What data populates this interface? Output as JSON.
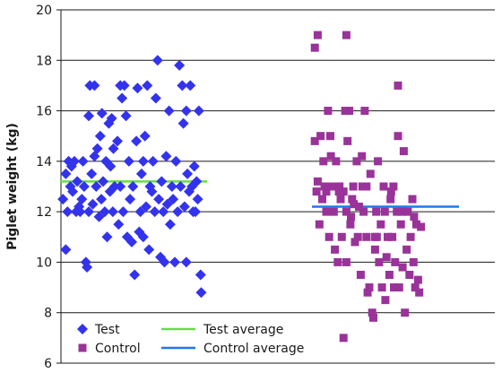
{
  "chart_data": {
    "type": "scatter",
    "ylabel": "Piglet weight (kg)",
    "xlabel": "",
    "ylim": [
      6,
      20
    ],
    "yticks": [
      6,
      8,
      10,
      12,
      14,
      16,
      18,
      20
    ],
    "grid": "horizontal",
    "legend_position": "bottom-left",
    "series": [
      {
        "name": "Test",
        "marker": "diamond",
        "color": "#3333ee",
        "group": "left",
        "points": [
          [
            0.05,
            12.5
          ],
          [
            0.1,
            13.5
          ],
          [
            0.1,
            10.5
          ],
          [
            0.13,
            12.0
          ],
          [
            0.15,
            14.0
          ],
          [
            0.2,
            13.8
          ],
          [
            0.22,
            12.8
          ],
          [
            0.25,
            14.0
          ],
          [
            0.3,
            13.2
          ],
          [
            0.33,
            12.2
          ],
          [
            0.35,
            12.0
          ],
          [
            0.38,
            12.5
          ],
          [
            0.4,
            14.0
          ],
          [
            0.42,
            13.0
          ],
          [
            0.45,
            10.0
          ],
          [
            0.47,
            9.8
          ],
          [
            0.5,
            12.0
          ],
          [
            0.5,
            15.8
          ],
          [
            0.52,
            17.0
          ],
          [
            0.55,
            13.5
          ],
          [
            0.57,
            12.3
          ],
          [
            0.6,
            14.2
          ],
          [
            0.63,
            13.0
          ],
          [
            0.65,
            14.5
          ],
          [
            0.68,
            11.8
          ],
          [
            0.7,
            15.0
          ],
          [
            0.72,
            12.5
          ],
          [
            0.73,
            15.9
          ],
          [
            0.75,
            13.2
          ],
          [
            0.78,
            12.0
          ],
          [
            0.8,
            14.0
          ],
          [
            0.82,
            11.0
          ],
          [
            0.85,
            15.5
          ],
          [
            0.87,
            12.8
          ],
          [
            0.88,
            13.8
          ],
          [
            0.9,
            15.7
          ],
          [
            0.92,
            12.0
          ],
          [
            0.93,
            14.5
          ],
          [
            0.95,
            13.0
          ],
          [
            1.0,
            14.8
          ],
          [
            1.02,
            11.5
          ],
          [
            1.05,
            13.0
          ],
          [
            1.08,
            16.5
          ],
          [
            1.1,
            12.0
          ],
          [
            1.12,
            17.0
          ],
          [
            1.15,
            15.8
          ],
          [
            1.17,
            11.0
          ],
          [
            1.2,
            14.0
          ],
          [
            1.22,
            12.5
          ],
          [
            1.25,
            10.8
          ],
          [
            1.27,
            13.0
          ],
          [
            1.3,
            9.5
          ],
          [
            1.33,
            14.8
          ],
          [
            1.35,
            16.9
          ],
          [
            1.38,
            11.2
          ],
          [
            1.4,
            12.0
          ],
          [
            1.42,
            13.5
          ],
          [
            1.45,
            14.0
          ],
          [
            1.48,
            15.0
          ],
          [
            1.5,
            12.2
          ],
          [
            1.52,
            17.0
          ],
          [
            1.55,
            10.5
          ],
          [
            1.57,
            13.0
          ],
          [
            1.6,
            12.8
          ],
          [
            1.62,
            14.0
          ],
          [
            1.65,
            12.0
          ],
          [
            1.67,
            16.5
          ],
          [
            1.7,
            18.0
          ],
          [
            1.72,
            12.5
          ],
          [
            1.75,
            10.2
          ],
          [
            1.77,
            13.2
          ],
          [
            1.8,
            12.0
          ],
          [
            1.82,
            10.0
          ],
          [
            1.85,
            14.2
          ],
          [
            1.87,
            12.3
          ],
          [
            1.9,
            16.0
          ],
          [
            1.92,
            11.5
          ],
          [
            1.95,
            13.0
          ],
          [
            1.97,
            12.5
          ],
          [
            2.0,
            10.0
          ],
          [
            2.02,
            14.0
          ],
          [
            2.05,
            12.0
          ],
          [
            2.08,
            17.8
          ],
          [
            2.1,
            13.0
          ],
          [
            2.13,
            17.0
          ],
          [
            2.15,
            15.5
          ],
          [
            2.17,
            12.2
          ],
          [
            2.2,
            16.0
          ],
          [
            2.22,
            13.5
          ],
          [
            2.25,
            12.8
          ],
          [
            2.27,
            17.0
          ],
          [
            2.3,
            13.0
          ],
          [
            2.32,
            12.0
          ],
          [
            2.34,
            13.8
          ],
          [
            2.36,
            12.0
          ],
          [
            2.38,
            13.2
          ],
          [
            2.4,
            12.5
          ],
          [
            2.42,
            16.0
          ],
          [
            2.45,
            9.5
          ],
          [
            2.46,
            8.8
          ],
          [
            0.18,
            13.0
          ],
          [
            0.28,
            12.0
          ],
          [
            0.6,
            17.0
          ],
          [
            1.05,
            17.0
          ],
          [
            2.2,
            10.0
          ],
          [
            1.45,
            11.0
          ]
        ]
      },
      {
        "name": "Control",
        "marker": "square",
        "color": "#993399",
        "group": "right",
        "points": [
          [
            0.05,
            18.5
          ],
          [
            0.1,
            19.0
          ],
          [
            0.6,
            19.0
          ],
          [
            1.5,
            17.0
          ],
          [
            0.05,
            14.8
          ],
          [
            0.1,
            13.2
          ],
          [
            0.15,
            15.0
          ],
          [
            0.18,
            12.5
          ],
          [
            0.2,
            14.0
          ],
          [
            0.22,
            13.0
          ],
          [
            0.25,
            12.8
          ],
          [
            0.28,
            16.0
          ],
          [
            0.3,
            11.0
          ],
          [
            0.32,
            15.0
          ],
          [
            0.35,
            13.0
          ],
          [
            0.38,
            12.0
          ],
          [
            0.4,
            10.5
          ],
          [
            0.42,
            14.0
          ],
          [
            0.45,
            10.0
          ],
          [
            0.48,
            13.0
          ],
          [
            0.5,
            12.5
          ],
          [
            0.52,
            11.0
          ],
          [
            0.55,
            12.8
          ],
          [
            0.58,
            16.0
          ],
          [
            0.6,
            12.0
          ],
          [
            0.62,
            14.8
          ],
          [
            0.65,
            16.0
          ],
          [
            0.67,
            11.5
          ],
          [
            0.7,
            12.5
          ],
          [
            0.72,
            13.0
          ],
          [
            0.75,
            10.8
          ],
          [
            0.78,
            14.0
          ],
          [
            0.8,
            11.0
          ],
          [
            0.82,
            12.2
          ],
          [
            0.85,
            9.5
          ],
          [
            0.87,
            14.2
          ],
          [
            0.9,
            12.0
          ],
          [
            0.92,
            16.0
          ],
          [
            0.95,
            11.0
          ],
          [
            0.97,
            8.8
          ],
          [
            1.0,
            9.0
          ],
          [
            1.02,
            13.5
          ],
          [
            1.05,
            8.0
          ],
          [
            1.07,
            7.8
          ],
          [
            1.1,
            11.0
          ],
          [
            1.12,
            12.0
          ],
          [
            1.15,
            14.0
          ],
          [
            1.17,
            10.0
          ],
          [
            1.2,
            11.5
          ],
          [
            1.22,
            9.0
          ],
          [
            1.25,
            13.0
          ],
          [
            1.27,
            12.0
          ],
          [
            1.3,
            10.2
          ],
          [
            1.32,
            11.0
          ],
          [
            1.35,
            9.5
          ],
          [
            1.37,
            12.5
          ],
          [
            1.4,
            11.0
          ],
          [
            1.42,
            13.0
          ],
          [
            1.45,
            10.0
          ],
          [
            1.48,
            12.0
          ],
          [
            1.5,
            15.0
          ],
          [
            1.52,
            9.0
          ],
          [
            1.55,
            11.5
          ],
          [
            1.57,
            12.0
          ],
          [
            1.6,
            14.4
          ],
          [
            1.62,
            8.0
          ],
          [
            1.65,
            10.5
          ],
          [
            1.67,
            12.0
          ],
          [
            1.7,
            9.5
          ],
          [
            1.72,
            11.0
          ],
          [
            1.75,
            12.5
          ],
          [
            1.77,
            10.0
          ],
          [
            1.8,
            9.0
          ],
          [
            1.82,
            11.5
          ],
          [
            1.85,
            9.3
          ],
          [
            1.87,
            8.8
          ],
          [
            1.9,
            11.4
          ],
          [
            0.55,
            7.0
          ],
          [
            0.08,
            12.8
          ],
          [
            0.13,
            11.5
          ],
          [
            0.25,
            12.0
          ],
          [
            0.33,
            14.2
          ],
          [
            0.47,
            12.8
          ],
          [
            0.68,
            11.8
          ],
          [
            0.73,
            12.3
          ],
          [
            0.88,
            13.0
          ],
          [
            1.13,
            11.0
          ],
          [
            1.28,
            8.5
          ],
          [
            1.38,
            12.8
          ],
          [
            1.58,
            9.8
          ],
          [
            1.78,
            11.8
          ],
          [
            0.4,
            13.0
          ],
          [
            0.6,
            10.0
          ],
          [
            0.95,
            13.0
          ],
          [
            1.1,
            10.5
          ],
          [
            1.43,
            9.0
          ]
        ]
      },
      {
        "name": "Test average",
        "kind": "line",
        "color": "#66dd44",
        "group": "left",
        "value": 13.2
      },
      {
        "name": "Control average",
        "kind": "line",
        "color": "#2277ee",
        "group": "right",
        "value": 12.2
      }
    ]
  }
}
